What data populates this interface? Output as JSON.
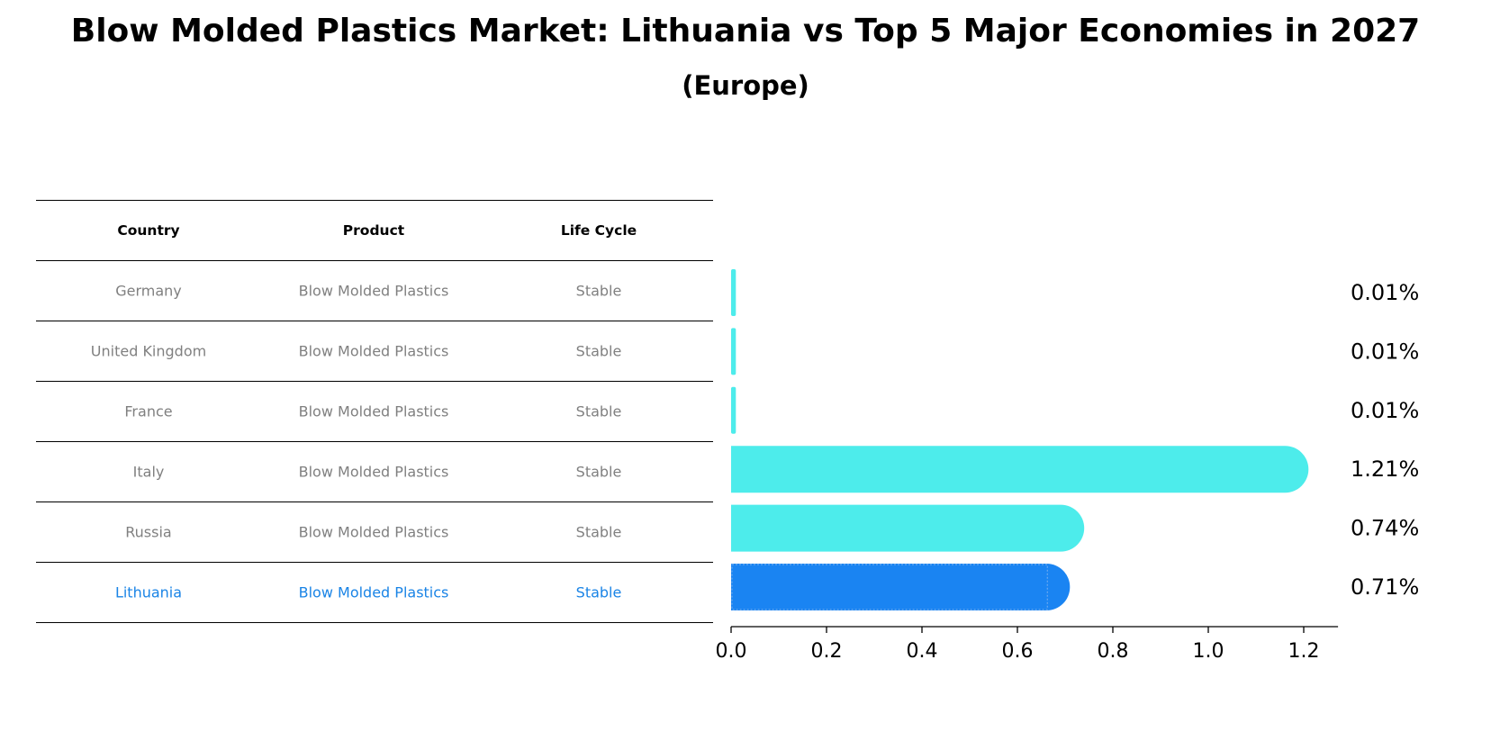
{
  "title": "Blow Molded Plastics Market: Lithuania vs Top 5 Major Economies in 2027",
  "subtitle": "(Europe)",
  "table": {
    "headers": [
      "Country",
      "Product",
      "Life Cycle"
    ],
    "rows": [
      {
        "country": "Germany",
        "product": "Blow Molded Plastics",
        "life_cycle": "Stable"
      },
      {
        "country": "United Kingdom",
        "product": "Blow Molded Plastics",
        "life_cycle": "Stable"
      },
      {
        "country": "France",
        "product": "Blow Molded Plastics",
        "life_cycle": "Stable"
      },
      {
        "country": "Italy",
        "product": "Blow Molded Plastics",
        "life_cycle": "Stable"
      },
      {
        "country": "Russia",
        "product": "Blow Molded Plastics",
        "life_cycle": "Stable"
      },
      {
        "country": "Lithuania",
        "product": "Blow Molded Plastics",
        "life_cycle": "Stable"
      }
    ]
  },
  "colors": {
    "bar": "#4deceb",
    "highlight_bar": "#1a84f2",
    "highlight_text": "#1a84e6",
    "muted_text": "#808080"
  },
  "chart_data": {
    "type": "bar",
    "orientation": "horizontal",
    "categories": [
      "Germany",
      "United Kingdom",
      "France",
      "Italy",
      "Russia",
      "Lithuania"
    ],
    "values": [
      0.01,
      0.01,
      0.01,
      1.21,
      0.74,
      0.71
    ],
    "value_labels": [
      "0.01%",
      "0.01%",
      "0.01%",
      "1.21%",
      "0.74%",
      "0.71%"
    ],
    "highlight": "Lithuania",
    "xlim": [
      0,
      1.27
    ],
    "xticks": [
      0.0,
      0.2,
      0.4,
      0.6,
      0.8,
      1.0,
      1.2
    ],
    "xtick_labels": [
      "0.0",
      "0.2",
      "0.4",
      "0.6",
      "0.8",
      "1.0",
      "1.2"
    ],
    "xlabel": "",
    "ylabel": ""
  }
}
